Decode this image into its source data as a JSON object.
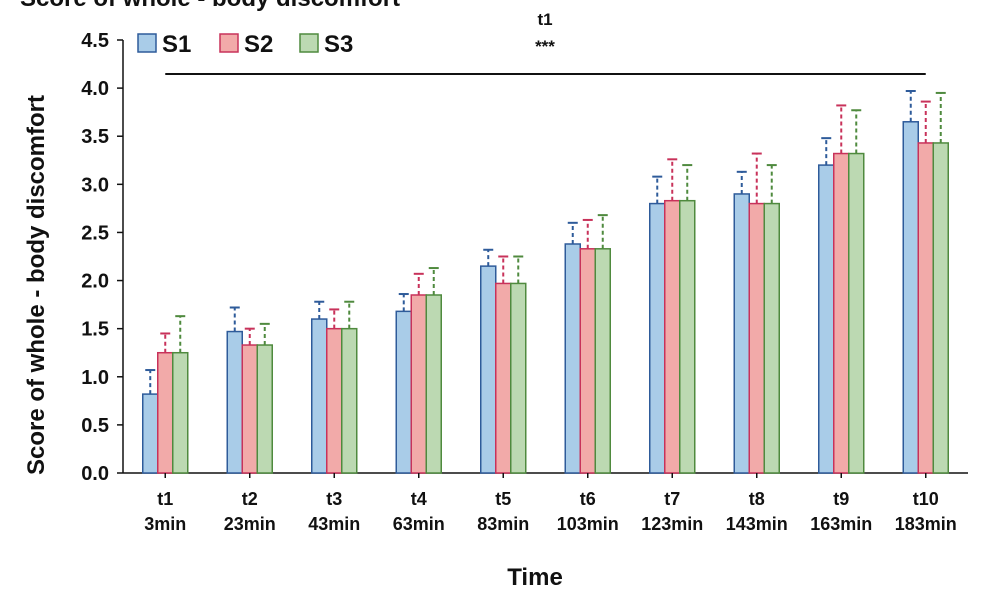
{
  "chart_data": {
    "type": "bar",
    "title": "",
    "xlabel": "Time",
    "ylabel": "Score of whole - body discomfort",
    "ylim": [
      0,
      4.5
    ],
    "yticks": [
      "0.0",
      "0.5",
      "1.0",
      "1.5",
      "2.0",
      "2.5",
      "3.0",
      "3.5",
      "4.0",
      "4.5"
    ],
    "categories": [
      [
        "t1",
        "3min"
      ],
      [
        "t2",
        "23min"
      ],
      [
        "t3",
        "43min"
      ],
      [
        "t4",
        "63min"
      ],
      [
        "t5",
        "83min"
      ],
      [
        "t6",
        "103min"
      ],
      [
        "t7",
        "123min"
      ],
      [
        "t8",
        "143min"
      ],
      [
        "t9",
        "163min"
      ],
      [
        "t10",
        "183min"
      ]
    ],
    "series": [
      {
        "name": "S1",
        "fill": "#a9cce8",
        "stroke": "#2e5b9a",
        "values": [
          0.82,
          1.47,
          1.6,
          1.68,
          2.15,
          2.38,
          2.8,
          2.9,
          3.2,
          3.65
        ],
        "errors": [
          0.25,
          0.25,
          0.18,
          0.18,
          0.17,
          0.22,
          0.28,
          0.23,
          0.28,
          0.32
        ]
      },
      {
        "name": "S2",
        "fill": "#f2aaa9",
        "stroke": "#c8325a",
        "values": [
          1.25,
          1.33,
          1.5,
          1.85,
          1.97,
          2.33,
          2.83,
          2.8,
          3.32,
          3.43
        ],
        "errors": [
          0.2,
          0.17,
          0.2,
          0.22,
          0.28,
          0.3,
          0.43,
          0.52,
          0.5,
          0.43
        ]
      },
      {
        "name": "S3",
        "fill": "#bcd9b2",
        "stroke": "#4f8a3e",
        "values": [
          1.25,
          1.33,
          1.5,
          1.85,
          1.97,
          2.33,
          2.83,
          2.8,
          3.32,
          3.43
        ],
        "errors": [
          0.38,
          0.22,
          0.28,
          0.28,
          0.28,
          0.35,
          0.37,
          0.4,
          0.45,
          0.52
        ]
      }
    ],
    "annotation": {
      "label": "t1",
      "significance": "***",
      "from": "t1",
      "to": "t10"
    },
    "legend": "top-left",
    "grid": false
  },
  "clipped_title_text": "Score of whole - body discomfort"
}
